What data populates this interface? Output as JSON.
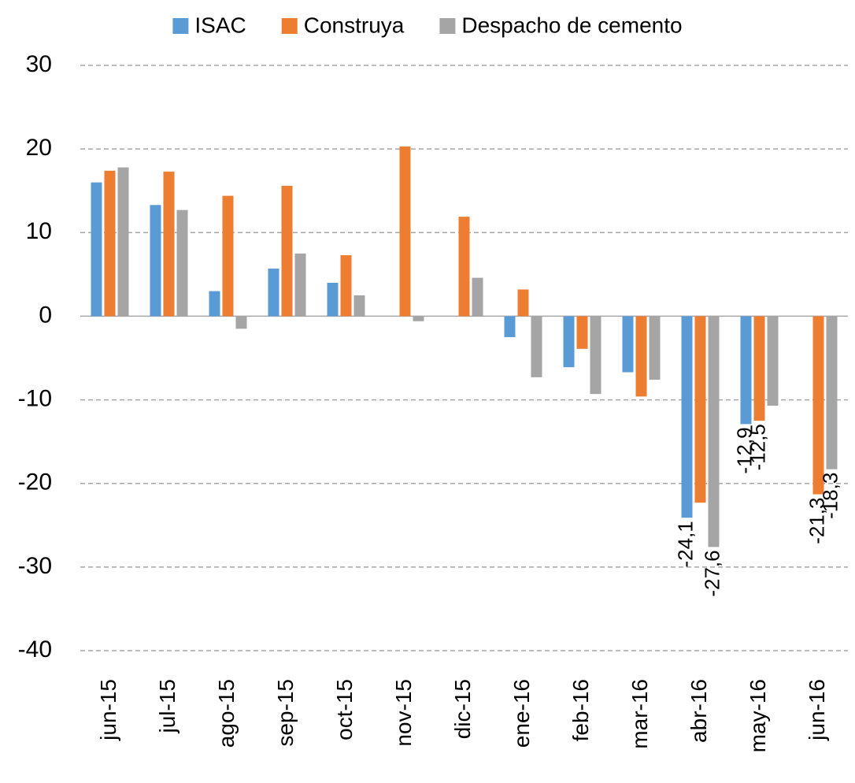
{
  "chart_data": {
    "type": "bar",
    "categories": [
      "jun-15",
      "jul-15",
      "ago-15",
      "sep-15",
      "oct-15",
      "nov-15",
      "dic-15",
      "ene-16",
      "feb-16",
      "mar-16",
      "abr-16",
      "may-16",
      "jun-16"
    ],
    "series": [
      {
        "name": "ISAC",
        "color": "#5b9bd5",
        "values": [
          16.0,
          13.3,
          3.0,
          5.7,
          4.0,
          null,
          null,
          -2.5,
          -6.1,
          -6.7,
          -24.1,
          -12.9,
          null
        ],
        "value_labels": [
          null,
          null,
          null,
          null,
          null,
          null,
          null,
          null,
          null,
          null,
          "-24,1",
          "-12,9",
          null
        ]
      },
      {
        "name": "Construya",
        "color": "#ed7d31",
        "values": [
          17.4,
          17.3,
          14.4,
          15.6,
          7.3,
          20.3,
          11.9,
          3.2,
          -3.9,
          -9.6,
          -22.3,
          -12.5,
          -21.3
        ],
        "value_labels": [
          null,
          null,
          null,
          null,
          null,
          null,
          null,
          null,
          null,
          null,
          null,
          "-12,5",
          "-21,3"
        ]
      },
      {
        "name": "Despacho de cemento",
        "color": "#a5a5a5",
        "values": [
          17.8,
          12.7,
          -1.5,
          7.5,
          2.5,
          -0.6,
          4.6,
          -7.3,
          -9.3,
          -7.6,
          -27.6,
          -10.7,
          -18.3
        ],
        "value_labels": [
          null,
          null,
          null,
          null,
          null,
          null,
          null,
          null,
          null,
          null,
          "-27,6",
          null,
          "-18,3"
        ]
      }
    ],
    "ylim": [
      -40,
      30
    ],
    "yticks": [
      -40,
      -30,
      -20,
      -10,
      0,
      10,
      20,
      30
    ],
    "grid": true,
    "legend": "top"
  }
}
